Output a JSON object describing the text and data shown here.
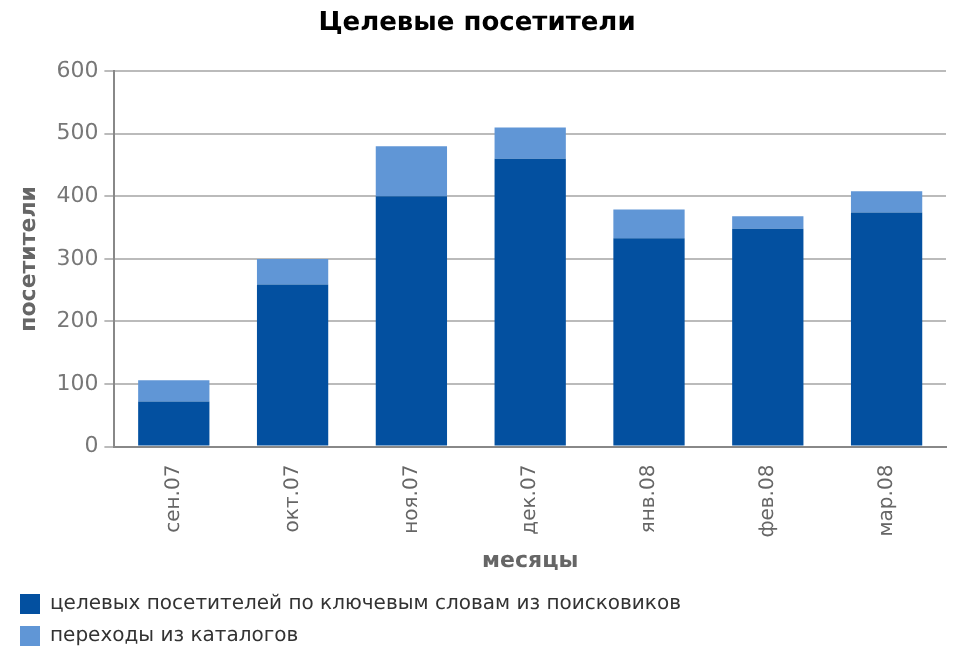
{
  "chart_data": {
    "type": "bar",
    "title": "Целевые посетители",
    "xlabel": "месяцы",
    "ylabel": "посетители",
    "categories": [
      "сен.07",
      "окт.07",
      "ноя.07",
      "дек.07",
      "янв.08",
      "фев.08",
      "мар.08"
    ],
    "series": [
      {
        "name": "целевых посетителей по ключевым словам из поисковиков",
        "color": "#0350a0",
        "values": [
          72,
          259,
          400,
          460,
          333,
          348,
          374
        ]
      },
      {
        "name": "переходы из каталогов",
        "color": "#6096d6",
        "values": [
          34,
          41,
          80,
          50,
          46,
          20,
          34
        ]
      }
    ],
    "stacked": true,
    "ylim": [
      0,
      600
    ],
    "yticks": [
      0,
      100,
      200,
      300,
      400,
      500,
      600
    ],
    "grid": "y",
    "legend": "bottom"
  }
}
